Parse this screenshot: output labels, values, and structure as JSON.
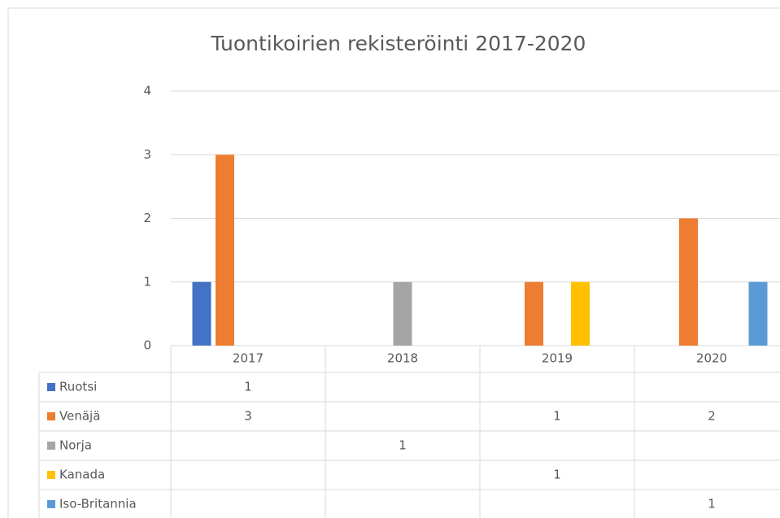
{
  "chart_data": {
    "type": "bar",
    "title": "Tuontikoirien rekisteröinti 2017-2020",
    "categories": [
      "2017",
      "2018",
      "2019",
      "2020"
    ],
    "series": [
      {
        "name": "Ruotsi",
        "color": "#4472c4",
        "values": [
          1,
          null,
          null,
          null
        ]
      },
      {
        "name": "Venäjä",
        "color": "#ed7d31",
        "values": [
          3,
          null,
          1,
          2
        ]
      },
      {
        "name": "Norja",
        "color": "#a5a5a5",
        "values": [
          null,
          1,
          null,
          null
        ]
      },
      {
        "name": "Kanada",
        "color": "#ffc000",
        "values": [
          null,
          null,
          1,
          null
        ]
      },
      {
        "name": "Iso-Britannia",
        "color": "#5b9bd5",
        "values": [
          null,
          null,
          null,
          1
        ]
      }
    ],
    "ylim": [
      0,
      4
    ],
    "yticks": [
      0,
      1,
      2,
      3,
      4
    ],
    "grid": true,
    "data_table": true
  }
}
